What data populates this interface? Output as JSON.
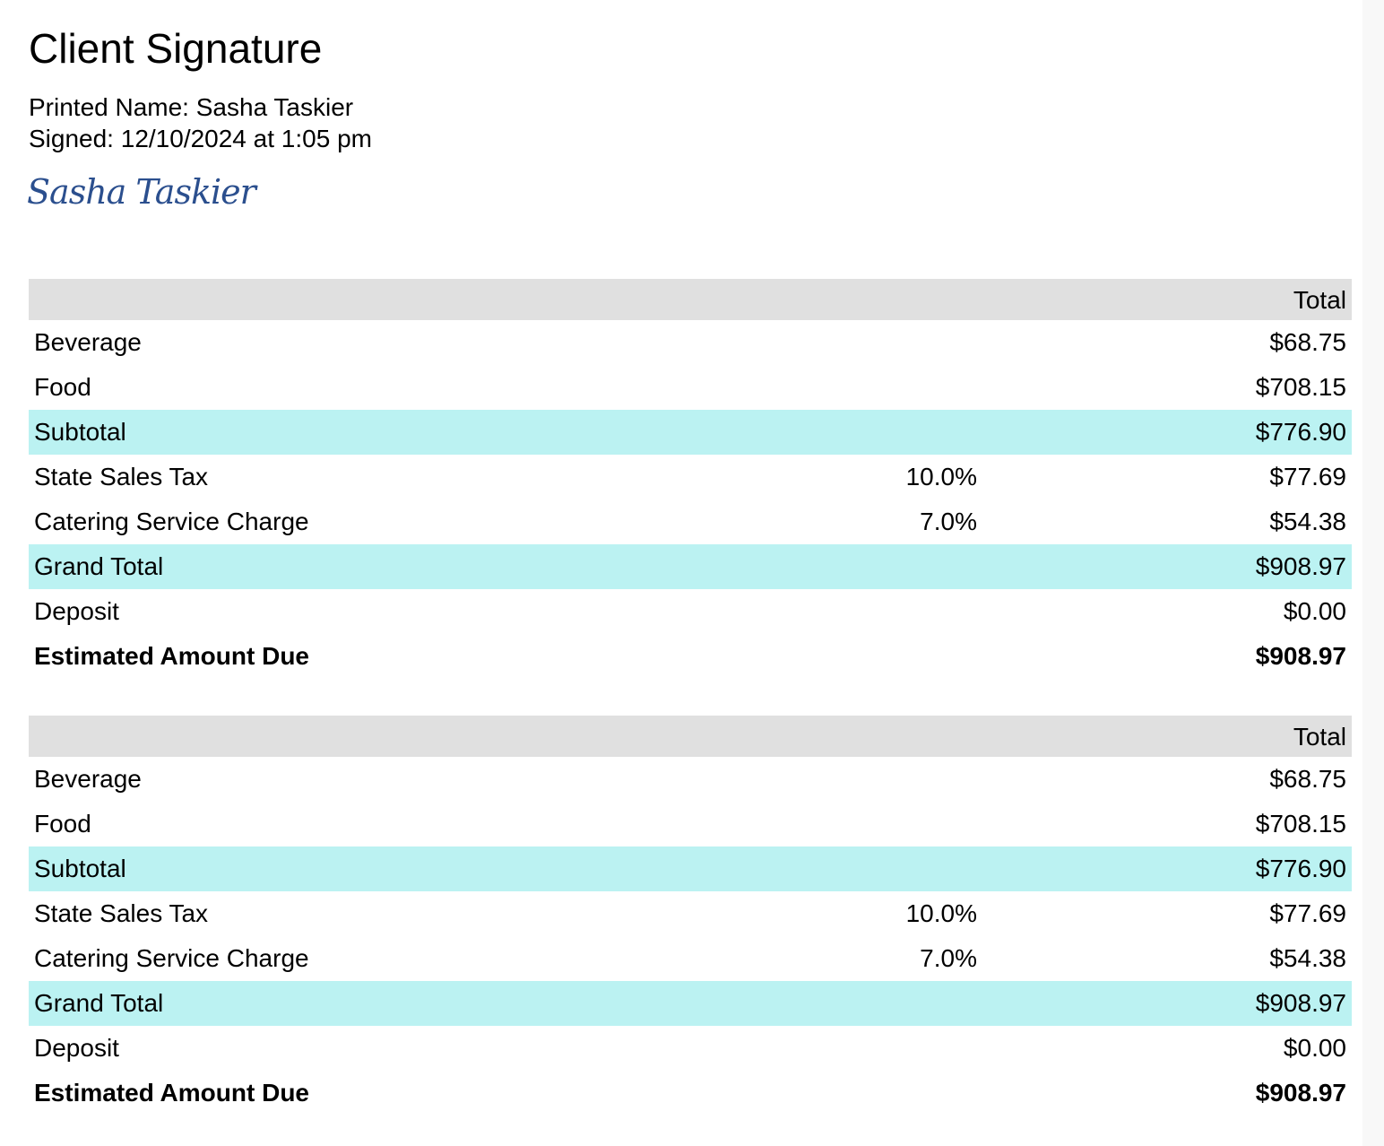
{
  "title": "Client Signature",
  "printed_name": "Printed Name: Sasha Taskier",
  "signed": "Signed: 12/10/2024 at 1:05 pm",
  "signature": "Sasha Taskier",
  "tables": [
    {
      "header": "Total",
      "rows": [
        {
          "label": "Beverage",
          "total": "$68.75"
        },
        {
          "label": "Food",
          "total": "$708.15"
        },
        {
          "label": "Subtotal",
          "total": "$776.90",
          "highlight": true
        },
        {
          "label": "State Sales Tax",
          "rate": "10.0%",
          "total": "$77.69"
        },
        {
          "label": "Catering Service Charge",
          "rate": "7.0%",
          "total": "$54.38"
        },
        {
          "label": "Grand Total",
          "total": "$908.97",
          "highlight": true
        },
        {
          "label": "Deposit",
          "total": "$0.00"
        },
        {
          "label": "Estimated Amount Due",
          "total": "$908.97",
          "bold": true
        }
      ]
    },
    {
      "header": "Total",
      "rows": [
        {
          "label": "Beverage",
          "total": "$68.75"
        },
        {
          "label": "Food",
          "total": "$708.15"
        },
        {
          "label": "Subtotal",
          "total": "$776.90",
          "highlight": true
        },
        {
          "label": "State Sales Tax",
          "rate": "10.0%",
          "total": "$77.69"
        },
        {
          "label": "Catering Service Charge",
          "rate": "7.0%",
          "total": "$54.38"
        },
        {
          "label": "Grand Total",
          "total": "$908.97",
          "highlight": true
        },
        {
          "label": "Deposit",
          "total": "$0.00"
        },
        {
          "label": "Estimated Amount Due",
          "total": "$908.97",
          "bold": true
        }
      ]
    }
  ]
}
